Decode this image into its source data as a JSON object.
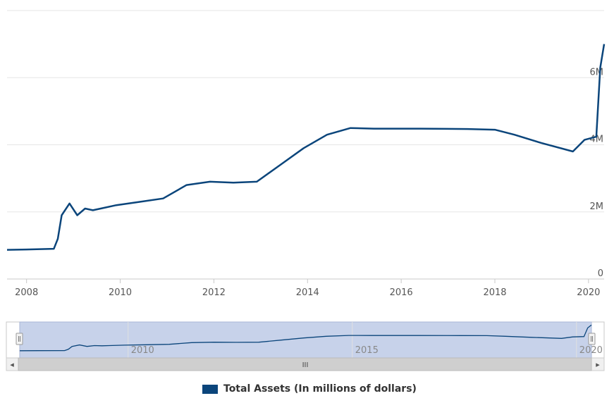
{
  "chart_data": {
    "type": "line",
    "title": "",
    "xlabel": "",
    "ylabel": "",
    "x_ticks": [
      "2008",
      "2010",
      "2012",
      "2014",
      "2016",
      "2018",
      "2020"
    ],
    "y_ticks": [
      "0",
      "2M",
      "4M",
      "6M"
    ],
    "ylim": [
      0,
      6000000
    ],
    "xlim": [
      "2007-08",
      "2020-05"
    ],
    "grid": true,
    "legend_position": "bottom-center",
    "color": "#0b457b",
    "series": [
      {
        "name": "Total Assets (In millions of dollars)",
        "points": [
          [
            "2007-08",
            870000
          ],
          [
            "2008-01",
            880000
          ],
          [
            "2008-08",
            900000
          ],
          [
            "2008-09",
            1200000
          ],
          [
            "2008-10",
            1900000
          ],
          [
            "2008-12",
            2250000
          ],
          [
            "2009-02",
            1900000
          ],
          [
            "2009-04",
            2100000
          ],
          [
            "2009-06",
            2050000
          ],
          [
            "2009-08",
            2100000
          ],
          [
            "2009-12",
            2200000
          ],
          [
            "2010-06",
            2300000
          ],
          [
            "2010-12",
            2400000
          ],
          [
            "2011-06",
            2800000
          ],
          [
            "2011-12",
            2900000
          ],
          [
            "2012-06",
            2870000
          ],
          [
            "2012-12",
            2900000
          ],
          [
            "2013-06",
            3400000
          ],
          [
            "2013-12",
            3900000
          ],
          [
            "2014-06",
            4300000
          ],
          [
            "2014-12",
            4500000
          ],
          [
            "2015-06",
            4480000
          ],
          [
            "2016-06",
            4480000
          ],
          [
            "2017-06",
            4470000
          ],
          [
            "2018-01",
            4450000
          ],
          [
            "2018-06",
            4300000
          ],
          [
            "2019-01",
            4050000
          ],
          [
            "2019-09",
            3800000
          ],
          [
            "2019-12",
            4150000
          ],
          [
            "2020-03",
            4240000
          ],
          [
            "2020-04",
            6300000
          ],
          [
            "2020-05",
            7000000
          ]
        ]
      }
    ]
  },
  "navigator": {
    "labels": [
      "2010",
      "2015",
      "2020"
    ],
    "scroll_grip": "III",
    "left_arrow": "◂",
    "right_arrow": "▸"
  },
  "legend": {
    "label": "Total Assets (In millions of dollars)"
  }
}
